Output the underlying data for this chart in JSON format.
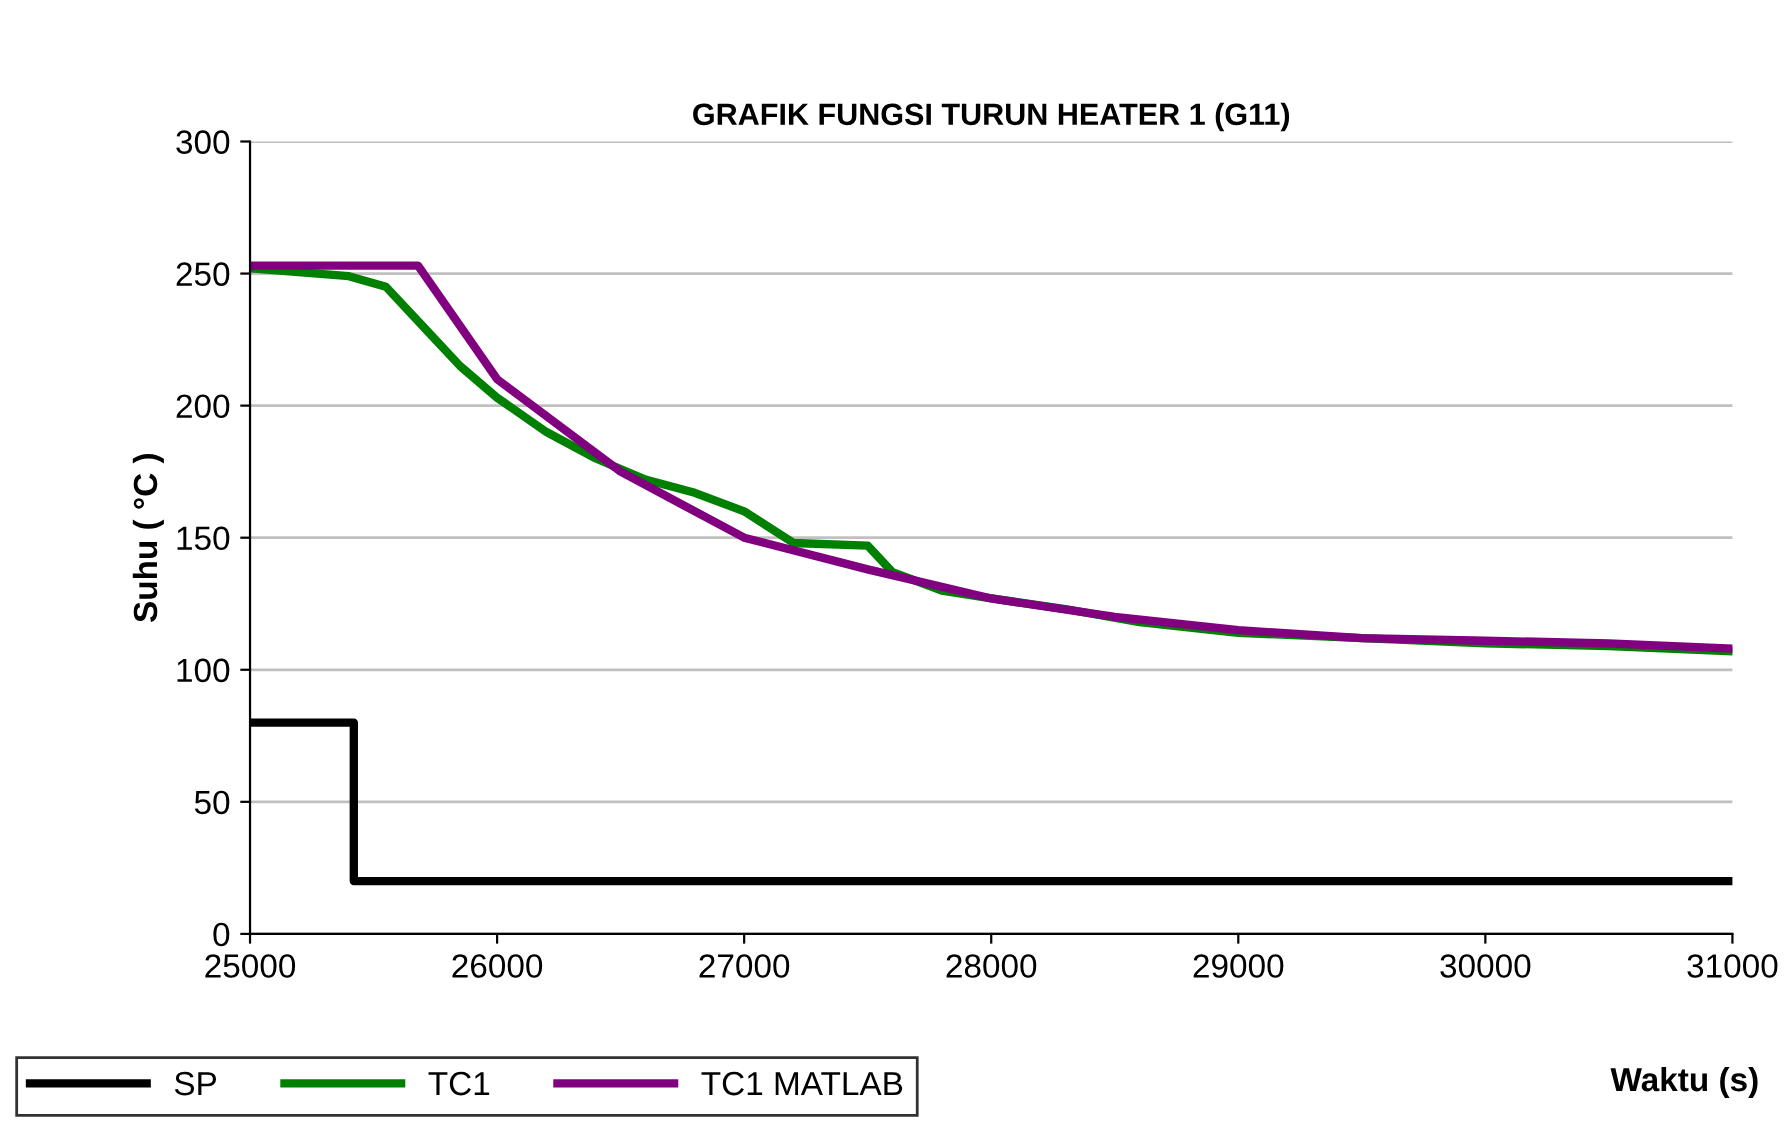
{
  "chart_data": {
    "type": "line",
    "title": "GRAFIK FUNGSI TURUN HEATER 1 (G11)",
    "xlabel": "Waktu (s)",
    "ylabel": "Suhu ( °C )",
    "xlim": [
      25000,
      31000
    ],
    "xticks": [
      25000,
      26000,
      27000,
      28000,
      29000,
      30000,
      31000
    ],
    "ylim": [
      0,
      300
    ],
    "yticks": [
      0,
      50,
      100,
      150,
      200,
      250,
      300
    ],
    "grid": "y",
    "legend": "bottom",
    "marker": "none",
    "line_style": "solid",
    "series": [
      {
        "name": "SP",
        "color": "#000000",
        "type": "step",
        "x": [
          25000,
          25420,
          31000
        ],
        "values": [
          80,
          20,
          20
        ]
      },
      {
        "name": "TC1",
        "color": "#008000",
        "x": [
          25000,
          25400,
          25550,
          25700,
          25850,
          26000,
          26200,
          26400,
          26600,
          26800,
          27000,
          27200,
          27500,
          27600,
          27800,
          28000,
          28300,
          28600,
          29000,
          29500,
          30000,
          30500,
          31000
        ],
        "values": [
          252,
          249,
          245,
          230,
          215,
          203,
          190,
          180,
          172,
          167,
          160,
          148,
          147,
          137,
          130,
          127,
          123,
          118,
          114,
          112,
          110,
          109,
          107
        ]
      },
      {
        "name": "TC1 MATLAB",
        "color": "#800080",
        "x": [
          25000,
          25680,
          26000,
          26500,
          27000,
          27500,
          28000,
          28500,
          29000,
          29500,
          30000,
          30500,
          31000
        ],
        "values": [
          253,
          253,
          210,
          175,
          150,
          138,
          127,
          120,
          115,
          112,
          111,
          110,
          108
        ]
      }
    ]
  }
}
